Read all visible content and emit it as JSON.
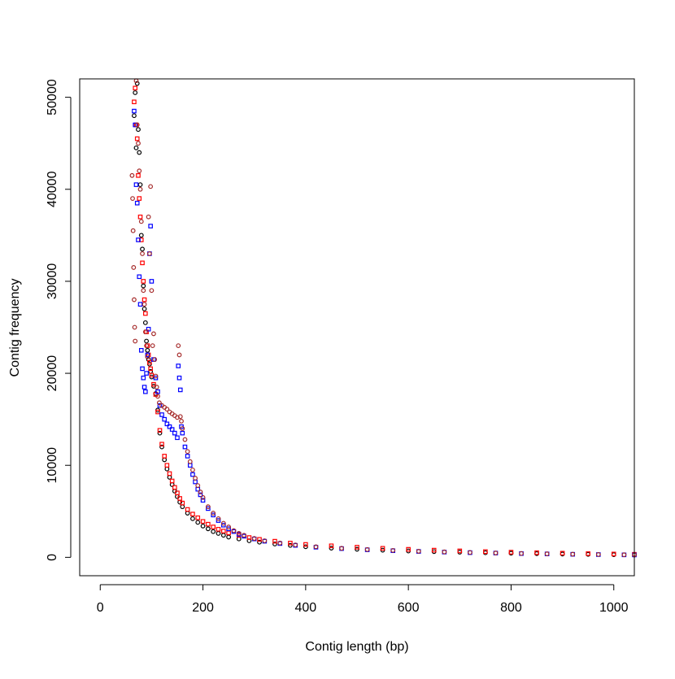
{
  "chart_data": {
    "type": "scatter",
    "title": "",
    "xlabel": "Contig length (bp)",
    "ylabel": "Contig frequency",
    "xlim": [
      -40,
      1040
    ],
    "ylim": [
      -2000,
      52000
    ],
    "x_ticks": [
      0,
      200,
      400,
      600,
      800,
      1000
    ],
    "y_ticks": [
      0,
      10000,
      20000,
      30000,
      40000,
      50000
    ],
    "grid": false,
    "legend": "none",
    "series": [
      {
        "color": "#000000",
        "marker": "circle",
        "points": [
          [
            66,
            48000
          ],
          [
            68,
            50500
          ],
          [
            70,
            44500
          ],
          [
            72,
            51500
          ],
          [
            74,
            46500
          ],
          [
            76,
            44000
          ],
          [
            78,
            40500
          ],
          [
            80,
            35000
          ],
          [
            82,
            33500
          ],
          [
            84,
            29500
          ],
          [
            86,
            27000
          ],
          [
            88,
            25500
          ],
          [
            90,
            23500
          ],
          [
            92,
            22500
          ],
          [
            94,
            21500
          ],
          [
            96,
            21000
          ],
          [
            98,
            20200
          ],
          [
            100,
            19600
          ],
          [
            104,
            18600
          ],
          [
            108,
            17800
          ],
          [
            112,
            16000
          ],
          [
            116,
            13500
          ],
          [
            120,
            12000
          ],
          [
            125,
            10600
          ],
          [
            130,
            9600
          ],
          [
            135,
            8700
          ],
          [
            140,
            7900
          ],
          [
            145,
            7200
          ],
          [
            150,
            6600
          ],
          [
            155,
            6000
          ],
          [
            160,
            5500
          ],
          [
            170,
            4800
          ],
          [
            180,
            4200
          ],
          [
            190,
            3800
          ],
          [
            200,
            3400
          ],
          [
            210,
            3100
          ],
          [
            220,
            2800
          ],
          [
            230,
            2600
          ],
          [
            240,
            2400
          ],
          [
            250,
            2200
          ],
          [
            270,
            2000
          ],
          [
            290,
            1800
          ],
          [
            310,
            1650
          ],
          [
            340,
            1450
          ],
          [
            370,
            1300
          ],
          [
            400,
            1150
          ],
          [
            450,
            1000
          ],
          [
            500,
            880
          ],
          [
            550,
            780
          ],
          [
            600,
            690
          ],
          [
            650,
            620
          ],
          [
            700,
            560
          ],
          [
            750,
            500
          ],
          [
            800,
            450
          ],
          [
            850,
            400
          ],
          [
            900,
            360
          ],
          [
            950,
            320
          ],
          [
            1000,
            290
          ],
          [
            1040,
            260
          ]
        ]
      },
      {
        "color": "#ff0000",
        "marker": "square",
        "points": [
          [
            66,
            49500
          ],
          [
            68,
            51000
          ],
          [
            70,
            47000
          ],
          [
            72,
            45500
          ],
          [
            74,
            41500
          ],
          [
            76,
            39000
          ],
          [
            78,
            37000
          ],
          [
            80,
            34500
          ],
          [
            82,
            32000
          ],
          [
            84,
            30000
          ],
          [
            86,
            28000
          ],
          [
            88,
            26500
          ],
          [
            90,
            24500
          ],
          [
            92,
            23000
          ],
          [
            94,
            22000
          ],
          [
            96,
            21200
          ],
          [
            98,
            20500
          ],
          [
            100,
            19800
          ],
          [
            104,
            18800
          ],
          [
            108,
            17700
          ],
          [
            112,
            15800
          ],
          [
            116,
            13800
          ],
          [
            120,
            12300
          ],
          [
            125,
            11000
          ],
          [
            130,
            10000
          ],
          [
            135,
            9100
          ],
          [
            140,
            8300
          ],
          [
            145,
            7600
          ],
          [
            150,
            7000
          ],
          [
            155,
            6400
          ],
          [
            160,
            5900
          ],
          [
            170,
            5200
          ],
          [
            180,
            4700
          ],
          [
            190,
            4300
          ],
          [
            200,
            3900
          ],
          [
            210,
            3600
          ],
          [
            220,
            3300
          ],
          [
            230,
            3050
          ],
          [
            240,
            2850
          ],
          [
            250,
            2650
          ],
          [
            270,
            2400
          ],
          [
            290,
            2150
          ],
          [
            310,
            1950
          ],
          [
            340,
            1750
          ],
          [
            370,
            1550
          ],
          [
            400,
            1400
          ],
          [
            450,
            1250
          ],
          [
            500,
            1100
          ],
          [
            550,
            980
          ],
          [
            600,
            870
          ],
          [
            650,
            780
          ],
          [
            700,
            700
          ],
          [
            750,
            620
          ],
          [
            800,
            560
          ],
          [
            850,
            500
          ],
          [
            900,
            450
          ],
          [
            950,
            400
          ],
          [
            1000,
            360
          ],
          [
            1040,
            330
          ]
        ]
      },
      {
        "color": "#0000ff",
        "marker": "square",
        "points": [
          [
            66,
            48500
          ],
          [
            68,
            47000
          ],
          [
            70,
            40500
          ],
          [
            72,
            38500
          ],
          [
            74,
            34500
          ],
          [
            76,
            30500
          ],
          [
            78,
            27500
          ],
          [
            80,
            22500
          ],
          [
            82,
            20500
          ],
          [
            84,
            19500
          ],
          [
            86,
            18500
          ],
          [
            88,
            18000
          ],
          [
            90,
            20000
          ],
          [
            92,
            22000
          ],
          [
            94,
            24800
          ],
          [
            96,
            33000
          ],
          [
            98,
            36000
          ],
          [
            100,
            30000
          ],
          [
            104,
            21500
          ],
          [
            108,
            19500
          ],
          [
            112,
            18000
          ],
          [
            116,
            16500
          ],
          [
            120,
            15500
          ],
          [
            125,
            15000
          ],
          [
            130,
            14500
          ],
          [
            135,
            14200
          ],
          [
            140,
            13900
          ],
          [
            145,
            13500
          ],
          [
            150,
            13000
          ],
          [
            152,
            20800
          ],
          [
            154,
            19500
          ],
          [
            156,
            18200
          ],
          [
            158,
            14200
          ],
          [
            160,
            13500
          ],
          [
            165,
            12000
          ],
          [
            170,
            11000
          ],
          [
            175,
            10000
          ],
          [
            180,
            9000
          ],
          [
            185,
            8200
          ],
          [
            190,
            7400
          ],
          [
            195,
            6800
          ],
          [
            200,
            6200
          ],
          [
            210,
            5300
          ],
          [
            220,
            4600
          ],
          [
            230,
            4000
          ],
          [
            240,
            3500
          ],
          [
            250,
            3100
          ],
          [
            260,
            2800
          ],
          [
            270,
            2500
          ],
          [
            280,
            2300
          ],
          [
            300,
            2000
          ],
          [
            320,
            1750
          ],
          [
            350,
            1500
          ],
          [
            380,
            1300
          ],
          [
            420,
            1100
          ],
          [
            470,
            950
          ],
          [
            520,
            820
          ],
          [
            570,
            720
          ],
          [
            620,
            640
          ],
          [
            670,
            570
          ],
          [
            720,
            510
          ],
          [
            770,
            460
          ],
          [
            820,
            410
          ],
          [
            870,
            370
          ],
          [
            920,
            330
          ],
          [
            970,
            300
          ],
          [
            1020,
            270
          ],
          [
            1040,
            260
          ]
        ]
      },
      {
        "color": "#a52a2a",
        "marker": "circle",
        "points": [
          [
            62,
            41500
          ],
          [
            63,
            39000
          ],
          [
            64,
            35500
          ],
          [
            65,
            31500
          ],
          [
            66,
            28000
          ],
          [
            67,
            25000
          ],
          [
            68,
            23500
          ],
          [
            70,
            51800
          ],
          [
            72,
            47000
          ],
          [
            74,
            45000
          ],
          [
            76,
            42000
          ],
          [
            78,
            40000
          ],
          [
            80,
            36500
          ],
          [
            82,
            33000
          ],
          [
            84,
            29000
          ],
          [
            86,
            27500
          ],
          [
            88,
            24500
          ],
          [
            90,
            23000
          ],
          [
            92,
            21800
          ],
          [
            94,
            37000
          ],
          [
            96,
            33000
          ],
          [
            98,
            40300
          ],
          [
            100,
            29000
          ],
          [
            102,
            23000
          ],
          [
            104,
            24300
          ],
          [
            106,
            21500
          ],
          [
            108,
            19700
          ],
          [
            110,
            18500
          ],
          [
            112,
            17500
          ],
          [
            115,
            16800
          ],
          [
            120,
            16500
          ],
          [
            125,
            16300
          ],
          [
            130,
            16100
          ],
          [
            135,
            15800
          ],
          [
            140,
            15600
          ],
          [
            145,
            15400
          ],
          [
            150,
            15200
          ],
          [
            152,
            23000
          ],
          [
            154,
            22000
          ],
          [
            156,
            15300
          ],
          [
            158,
            14800
          ],
          [
            160,
            14000
          ],
          [
            165,
            12800
          ],
          [
            170,
            11500
          ],
          [
            175,
            10400
          ],
          [
            180,
            9500
          ],
          [
            185,
            8600
          ],
          [
            190,
            7800
          ],
          [
            195,
            7100
          ],
          [
            200,
            6500
          ],
          [
            210,
            5500
          ],
          [
            220,
            4800
          ],
          [
            230,
            4200
          ],
          [
            240,
            3700
          ],
          [
            250,
            3300
          ],
          [
            260,
            2900
          ],
          [
            270,
            2600
          ],
          [
            280,
            2400
          ],
          [
            300,
            2050
          ],
          [
            320,
            1800
          ],
          [
            350,
            1550
          ],
          [
            380,
            1350
          ],
          [
            420,
            1150
          ],
          [
            470,
            980
          ],
          [
            520,
            850
          ],
          [
            570,
            750
          ],
          [
            620,
            660
          ],
          [
            670,
            590
          ],
          [
            720,
            530
          ],
          [
            770,
            470
          ],
          [
            820,
            420
          ],
          [
            870,
            380
          ],
          [
            920,
            340
          ],
          [
            970,
            310
          ],
          [
            1020,
            280
          ],
          [
            1040,
            270
          ]
        ]
      }
    ]
  }
}
